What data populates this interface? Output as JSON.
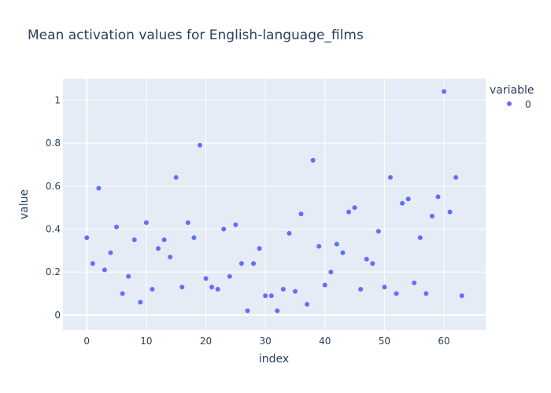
{
  "chart_data": {
    "type": "scatter",
    "title": "Mean activation values for English-language_films",
    "xlabel": "index",
    "ylabel": "value",
    "xlim": [
      -4,
      67
    ],
    "ylim": [
      -0.07,
      1.1
    ],
    "x_ticks": [
      0,
      10,
      20,
      30,
      40,
      50,
      60
    ],
    "y_ticks": [
      0,
      0.2,
      0.4,
      0.6,
      0.8,
      1
    ],
    "y_tick_labels": [
      "0",
      "0.2",
      "0.4",
      "0.6",
      "0.8",
      "1"
    ],
    "grid": true,
    "legend": {
      "title": "variable",
      "placement": "top-right",
      "entries": [
        "0"
      ]
    },
    "colors": {
      "plot_bg": "#e5ecf6",
      "grid": "#ffffff",
      "marker": "#636efa",
      "text": "#2a3f5f"
    },
    "series": [
      {
        "name": "0",
        "x": [
          0,
          1,
          2,
          3,
          4,
          5,
          6,
          7,
          8,
          9,
          10,
          11,
          12,
          13,
          14,
          15,
          16,
          17,
          18,
          19,
          20,
          21,
          22,
          23,
          24,
          25,
          26,
          27,
          28,
          29,
          30,
          31,
          32,
          33,
          34,
          35,
          36,
          37,
          38,
          39,
          40,
          41,
          42,
          43,
          44,
          45,
          46,
          47,
          48,
          49,
          50,
          51,
          52,
          53,
          54,
          55,
          56,
          57,
          58,
          59,
          60,
          61,
          62,
          63
        ],
        "values": [
          0.36,
          0.24,
          0.59,
          0.21,
          0.29,
          0.41,
          0.1,
          0.18,
          0.35,
          0.06,
          0.43,
          0.12,
          0.31,
          0.35,
          0.27,
          0.64,
          0.13,
          0.43,
          0.36,
          0.79,
          0.17,
          0.13,
          0.12,
          0.4,
          0.18,
          0.42,
          0.24,
          0.02,
          0.24,
          0.31,
          0.09,
          0.09,
          0.02,
          0.12,
          0.38,
          0.11,
          0.47,
          0.05,
          0.72,
          0.32,
          0.14,
          0.2,
          0.33,
          0.29,
          0.48,
          0.5,
          0.12,
          0.26,
          0.24,
          0.39,
          0.13,
          0.64,
          0.1,
          0.52,
          0.54,
          0.15,
          0.36,
          0.1,
          0.46,
          0.55,
          1.04,
          0.48,
          0.64,
          0.09
        ]
      }
    ]
  }
}
